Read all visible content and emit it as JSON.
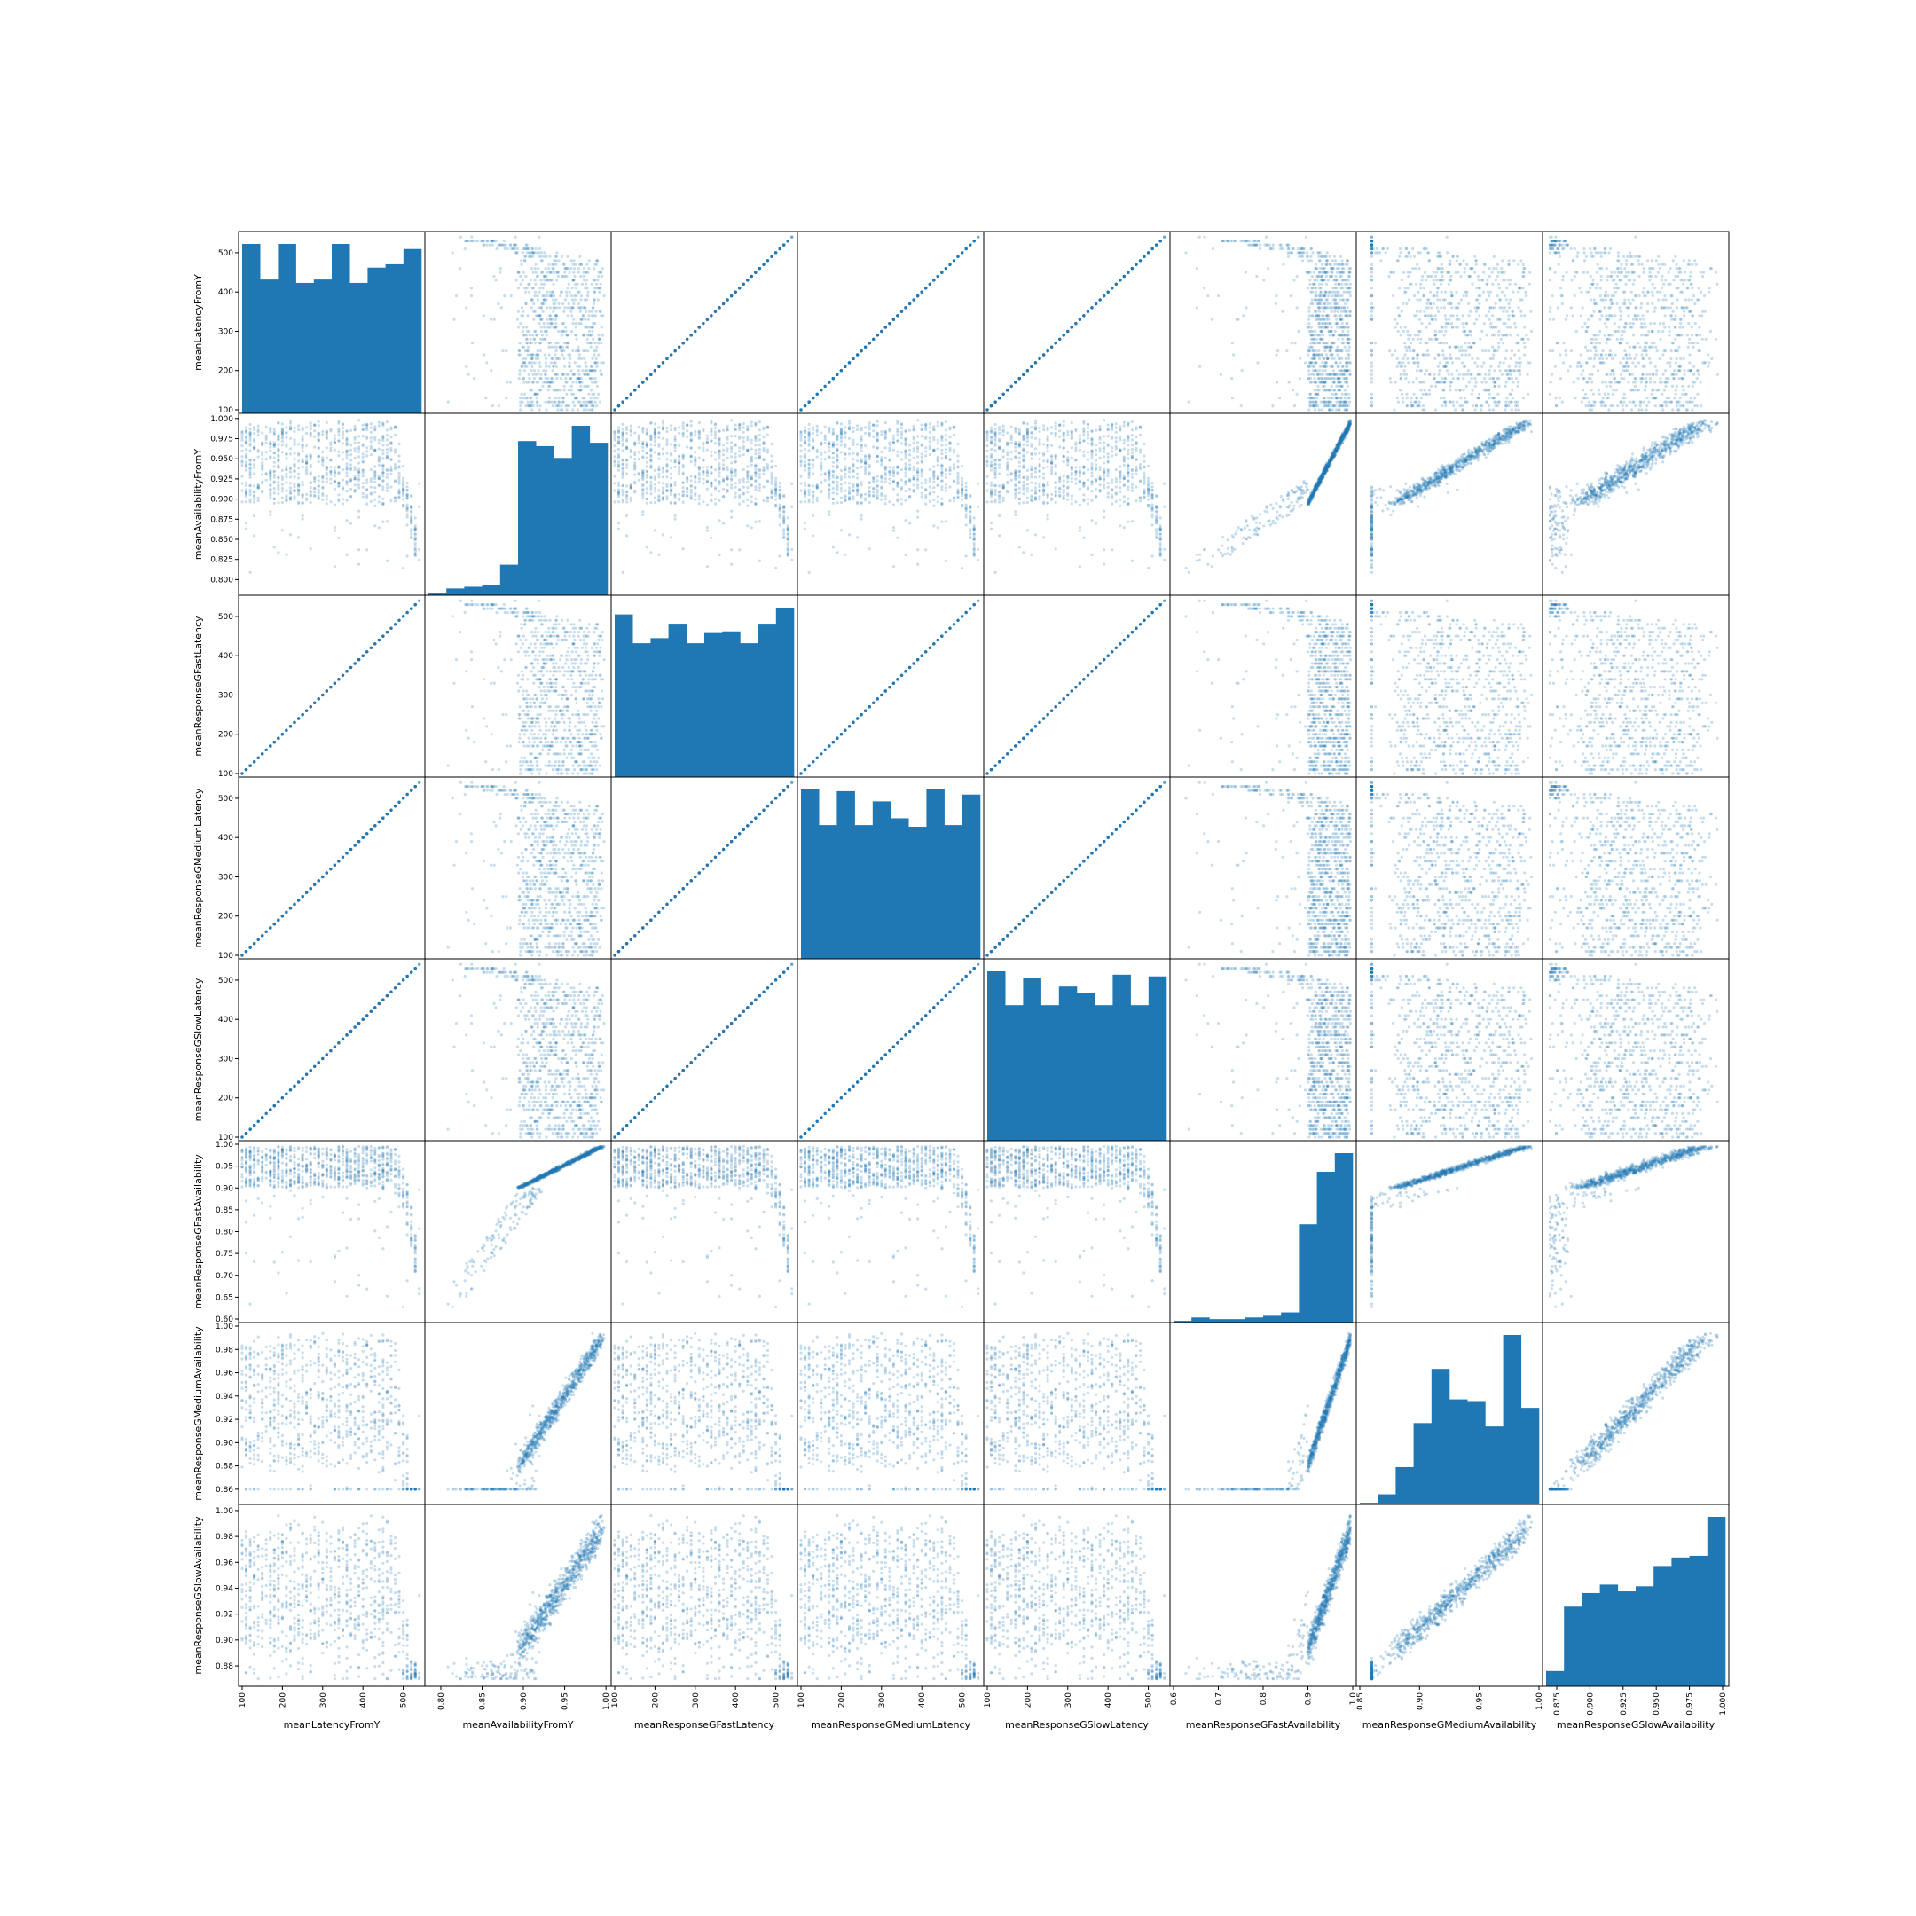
{
  "chart_data": {
    "type": "scatter-matrix",
    "title": "",
    "color": "#1f77b4",
    "point_alpha": 0.25,
    "histogram_bins": 10,
    "variables": [
      {
        "name": "meanLatencyFromY",
        "range": [
          100,
          545
        ],
        "ticks": [
          100,
          200,
          300,
          400,
          500
        ],
        "tick_labels": [
          "100",
          "200",
          "300",
          "400",
          "500"
        ]
      },
      {
        "name": "meanAvailabilityFromY",
        "range": [
          0.785,
          1.002
        ],
        "ticks": [
          0.8,
          0.825,
          0.85,
          0.875,
          0.9,
          0.925,
          0.95,
          0.975,
          1.0
        ],
        "tick_labels": [
          "0.800",
          "0.825",
          "0.850",
          "0.875",
          "0.900",
          "0.925",
          "0.950",
          "0.975",
          "1.000"
        ],
        "x_ticks": [
          0.8,
          0.85,
          0.9,
          0.95,
          1.0
        ],
        "x_tick_labels": [
          "0.80",
          "0.85",
          "0.90",
          "0.95",
          "1.00"
        ]
      },
      {
        "name": "meanResponseGFastLatency",
        "range": [
          100,
          545
        ],
        "ticks": [
          100,
          200,
          300,
          400,
          500
        ],
        "tick_labels": [
          "100",
          "200",
          "300",
          "400",
          "500"
        ]
      },
      {
        "name": "meanResponseGMediumLatency",
        "range": [
          100,
          545
        ],
        "ticks": [
          100,
          200,
          300,
          400,
          500
        ],
        "tick_labels": [
          "100",
          "200",
          "300",
          "400",
          "500"
        ]
      },
      {
        "name": "meanResponseGSlowLatency",
        "range": [
          100,
          545
        ],
        "ticks": [
          100,
          200,
          300,
          400,
          500
        ],
        "tick_labels": [
          "100",
          "200",
          "300",
          "400",
          "500"
        ]
      },
      {
        "name": "meanResponseGFastAvailability",
        "range": [
          0.6,
          1.0
        ],
        "ticks": [
          0.6,
          0.65,
          0.7,
          0.75,
          0.8,
          0.85,
          0.9,
          0.95,
          1.0
        ],
        "tick_labels": [
          "0.60",
          "0.65",
          "0.70",
          "0.75",
          "0.80",
          "0.85",
          "0.90",
          "0.95",
          "1.00"
        ],
        "x_ticks": [
          0.6,
          0.7,
          0.8,
          0.9,
          1.0
        ],
        "x_tick_labels": [
          "0.6",
          "0.7",
          "0.8",
          "0.9",
          "1.0"
        ]
      },
      {
        "name": "meanResponseGMediumAvailability",
        "range": [
          0.85,
          1.0
        ],
        "ticks": [
          0.86,
          0.88,
          0.9,
          0.92,
          0.94,
          0.96,
          0.98,
          1.0
        ],
        "tick_labels": [
          "0.86",
          "0.88",
          "0.90",
          "0.92",
          "0.94",
          "0.96",
          "0.98",
          "1.00"
        ],
        "x_ticks": [
          0.85,
          0.9,
          0.95,
          1.0
        ],
        "x_tick_labels": [
          "0.85",
          "0.90",
          "0.95",
          "1.00"
        ]
      },
      {
        "name": "meanResponseGSlowAvailability",
        "range": [
          0.867,
          1.002
        ],
        "ticks": [
          0.88,
          0.9,
          0.92,
          0.94,
          0.96,
          0.98,
          1.0
        ],
        "tick_labels": [
          "0.88",
          "0.90",
          "0.92",
          "0.94",
          "0.96",
          "0.98",
          "1.00"
        ],
        "x_ticks": [
          0.875,
          0.9,
          0.925,
          0.95,
          0.975,
          1.0
        ],
        "x_tick_labels": [
          "0.875",
          "0.900",
          "0.925",
          "0.950",
          "0.975",
          "1.000"
        ]
      }
    ],
    "histograms": [
      {
        "variable": "meanLatencyFromY",
        "relative_heights": [
          1.0,
          0.79,
          1.0,
          0.77,
          0.79,
          1.0,
          0.77,
          0.86,
          0.88,
          0.97
        ]
      },
      {
        "variable": "meanAvailabilityFromY",
        "relative_heights": [
          0.01,
          0.04,
          0.05,
          0.06,
          0.18,
          0.91,
          0.88,
          0.81,
          1.0,
          0.9
        ]
      },
      {
        "variable": "meanResponseGFastLatency",
        "relative_heights": [
          0.96,
          0.79,
          0.82,
          0.9,
          0.79,
          0.85,
          0.86,
          0.79,
          0.9,
          1.0
        ]
      },
      {
        "variable": "meanResponseGMediumLatency",
        "relative_heights": [
          1.0,
          0.79,
          0.99,
          0.79,
          0.93,
          0.83,
          0.78,
          1.0,
          0.79,
          0.97
        ]
      },
      {
        "variable": "meanResponseGSlowLatency",
        "relative_heights": [
          1.0,
          0.8,
          0.96,
          0.8,
          0.91,
          0.87,
          0.8,
          0.98,
          0.8,
          0.97
        ]
      },
      {
        "variable": "meanResponseGFastAvailability",
        "relative_heights": [
          0.01,
          0.03,
          0.02,
          0.02,
          0.03,
          0.04,
          0.06,
          0.58,
          0.89,
          1.0
        ]
      },
      {
        "variable": "meanResponseGMediumAvailability",
        "relative_heights": [
          0.01,
          0.06,
          0.22,
          0.48,
          0.8,
          0.62,
          0.61,
          0.46,
          1.0,
          0.57
        ]
      },
      {
        "variable": "meanResponseGSlowAvailability",
        "relative_heights": [
          0.09,
          0.47,
          0.55,
          0.6,
          0.56,
          0.59,
          0.71,
          0.76,
          0.77,
          1.0
        ]
      }
    ]
  }
}
